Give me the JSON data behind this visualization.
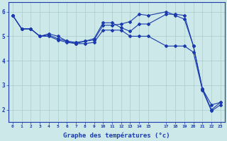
{
  "background_color": "#cce8e8",
  "line_color": "#1a3aad",
  "grid_color": "#aacccc",
  "xlabel": "Graphe des températures (°c)",
  "xlabel_color": "#1a3aad",
  "tick_color": "#1a3aad",
  "ylim": [
    1.5,
    6.4
  ],
  "xlim": [
    -0.5,
    23.5
  ],
  "xtick_positions": [
    0,
    1,
    2,
    3,
    4,
    5,
    6,
    7,
    8,
    9,
    10,
    11,
    12,
    13,
    14,
    15,
    17,
    18,
    19,
    20,
    21,
    22,
    23
  ],
  "xtick_labels": [
    "0",
    "1",
    "2",
    "3",
    "4",
    "5",
    "6",
    "7",
    "8",
    "9",
    "10",
    "11",
    "12",
    "13",
    "14",
    "15",
    "17",
    "18",
    "19",
    "20",
    "21",
    "22",
    "23"
  ],
  "yticks": [
    2,
    3,
    4,
    5,
    6
  ],
  "series": [
    {
      "x": [
        0,
        1,
        2,
        3,
        4,
        5,
        6,
        7,
        8,
        9,
        10,
        11,
        12,
        13,
        14,
        15,
        17,
        18,
        19,
        20,
        21,
        22,
        23
      ],
      "y": [
        5.85,
        5.3,
        5.3,
        5.0,
        5.0,
        4.85,
        4.75,
        4.7,
        4.7,
        4.75,
        5.25,
        5.25,
        5.25,
        5.0,
        5.0,
        5.0,
        4.6,
        4.6,
        4.6,
        4.35,
        2.8,
        1.95,
        2.2
      ]
    },
    {
      "x": [
        0,
        1,
        2,
        3,
        4,
        5,
        6,
        7,
        8,
        9,
        10,
        11,
        12,
        13,
        14,
        15,
        17,
        18,
        19,
        20,
        21,
        22,
        23
      ],
      "y": [
        5.85,
        5.3,
        5.3,
        5.0,
        5.1,
        5.0,
        4.8,
        4.7,
        4.8,
        4.9,
        5.55,
        5.55,
        5.35,
        5.2,
        5.5,
        5.5,
        5.9,
        5.9,
        5.85,
        4.6,
        2.85,
        2.2,
        2.3
      ]
    },
    {
      "x": [
        0,
        1,
        2,
        3,
        4,
        5,
        6,
        7,
        8,
        9,
        10,
        11,
        12,
        13,
        14,
        15,
        17,
        18,
        19,
        20,
        21,
        22,
        23
      ],
      "y": [
        5.85,
        5.3,
        5.3,
        5.0,
        5.05,
        4.9,
        4.8,
        4.75,
        4.8,
        4.85,
        5.45,
        5.45,
        5.5,
        5.6,
        5.9,
        5.85,
        6.0,
        5.85,
        5.7,
        4.6,
        2.85,
        2.0,
        2.3
      ]
    }
  ],
  "marker_style": "D",
  "marker_size": 2.0,
  "line_width": 0.8
}
